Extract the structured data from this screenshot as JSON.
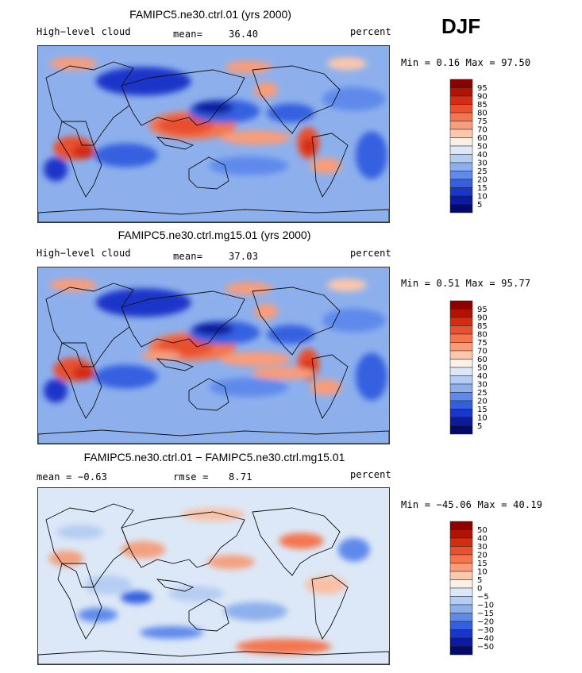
{
  "season": "DJF",
  "panels": [
    {
      "title": "FAMIPC5.ne30.ctrl.01 (yrs 2000)",
      "left_label": "High−level cloud",
      "stat_label": "mean=",
      "stat_value": "36.40",
      "units": "percent",
      "minmax": "Min =    0.16 Max =   97.50",
      "levels": [
        "95",
        "90",
        "85",
        "80",
        "75",
        "70",
        "60",
        "50",
        "40",
        "30",
        "25",
        "20",
        "15",
        "10",
        "5"
      ],
      "colors": [
        "#8c0000",
        "#b21200",
        "#d32c13",
        "#e8502f",
        "#f4764f",
        "#f99c79",
        "#fcc7ad",
        "#fbf0e6",
        "#dce8f7",
        "#b5cdf2",
        "#8db0ed",
        "#5f8aec",
        "#3460e0",
        "#1a35c9",
        "#0b1a9e",
        "#030a6b"
      ]
    },
    {
      "title": "FAMIPC5.ne30.ctrl.mg15.01 (yrs 2000)",
      "left_label": "High−level cloud",
      "stat_label": "mean=",
      "stat_value": "37.03",
      "units": "percent",
      "minmax": "Min =    0.51 Max =   95.77",
      "levels": [
        "95",
        "90",
        "85",
        "80",
        "75",
        "70",
        "60",
        "50",
        "40",
        "30",
        "25",
        "20",
        "15",
        "10",
        "5"
      ],
      "colors": [
        "#8c0000",
        "#b21200",
        "#d32c13",
        "#e8502f",
        "#f4764f",
        "#f99c79",
        "#fcc7ad",
        "#fbf0e6",
        "#dce8f7",
        "#b5cdf2",
        "#8db0ed",
        "#5f8aec",
        "#3460e0",
        "#1a35c9",
        "#0b1a9e",
        "#030a6b"
      ]
    },
    {
      "title": "FAMIPC5.ne30.ctrl.01 − FAMIPC5.ne30.ctrl.mg15.01",
      "left_label": "mean =   −0.63",
      "stat_label": "rmse =",
      "stat_value": "8.71",
      "units": "percent",
      "minmax": "Min = −45.06 Max =   40.19",
      "levels": [
        "50",
        "40",
        "30",
        "20",
        "15",
        "10",
        "5",
        "0",
        "−5",
        "−10",
        "−15",
        "−20",
        "−30",
        "−40",
        "−50"
      ],
      "colors": [
        "#8c0000",
        "#b21200",
        "#d32c13",
        "#e8502f",
        "#f4764f",
        "#f99c79",
        "#fcc7ad",
        "#fbf0e6",
        "#dce8f7",
        "#b5cdf2",
        "#8db0ed",
        "#5f8aec",
        "#3460e0",
        "#1a35c9",
        "#0b1a9e",
        "#030a6b"
      ]
    }
  ]
}
